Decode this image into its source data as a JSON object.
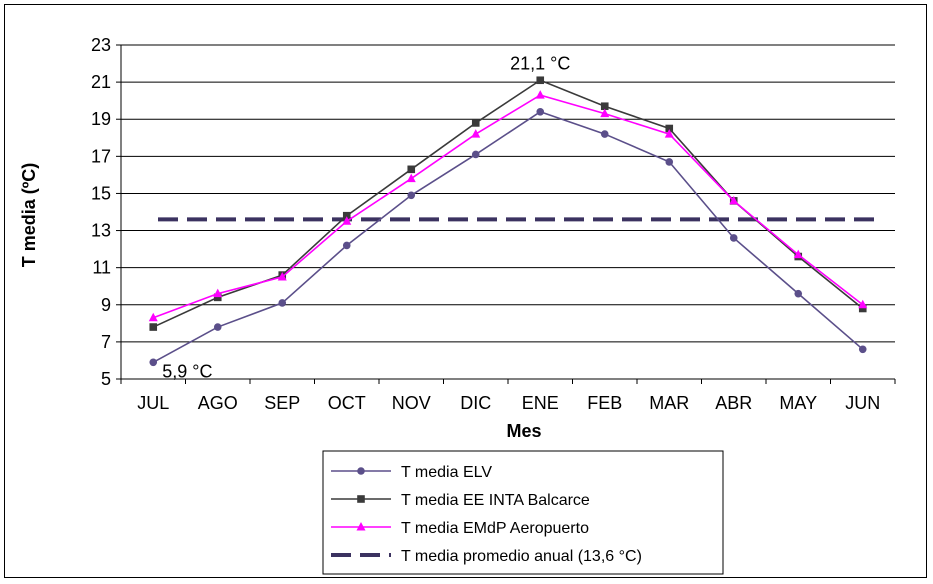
{
  "chart_data": {
    "type": "line",
    "xlabel": "Mes",
    "ylabel": "T media (ºC)",
    "ylim": [
      5,
      23
    ],
    "yticks": [
      "5",
      "7",
      "9",
      "11",
      "13",
      "15",
      "17",
      "19",
      "21",
      "23"
    ],
    "categories": [
      "JUL",
      "AGO",
      "SEP",
      "OCT",
      "NOV",
      "DIC",
      "ENE",
      "FEB",
      "MAR",
      "ABR",
      "MAY",
      "JUN"
    ],
    "grid": "horizontal",
    "legend_position": "bottom",
    "series": [
      {
        "name": "T media ELV",
        "color": "#5b4f8a",
        "marker": "circle",
        "style": "solid",
        "values": [
          5.9,
          7.8,
          9.1,
          12.2,
          14.9,
          17.1,
          19.4,
          18.2,
          16.7,
          12.6,
          9.6,
          6.6
        ]
      },
      {
        "name": "T media EE INTA Balcarce",
        "color": "#3a3a3a",
        "marker": "square",
        "style": "solid",
        "values": [
          7.8,
          9.4,
          10.6,
          13.8,
          16.3,
          18.8,
          21.1,
          19.7,
          18.5,
          14.6,
          11.6,
          8.8
        ]
      },
      {
        "name": "T media EMdP Aeropuerto",
        "color": "#ff00ff",
        "marker": "triangle",
        "style": "solid",
        "values": [
          8.3,
          9.6,
          10.5,
          13.5,
          15.8,
          18.2,
          20.3,
          19.3,
          18.2,
          14.6,
          11.7,
          9.0
        ]
      },
      {
        "name": "T media promedio anual (13,6 °C)",
        "color": "#3b3260",
        "marker": "none",
        "style": "dashed",
        "values": [
          13.6,
          13.6,
          13.6,
          13.6,
          13.6,
          13.6,
          13.6,
          13.6,
          13.6,
          13.6,
          13.6,
          13.6
        ]
      }
    ],
    "annotations": [
      {
        "text": "21,1 °C",
        "category": "ENE",
        "value": 21.1
      },
      {
        "text": "5,9 °C",
        "category": "JUL",
        "value": 5.9
      }
    ]
  }
}
